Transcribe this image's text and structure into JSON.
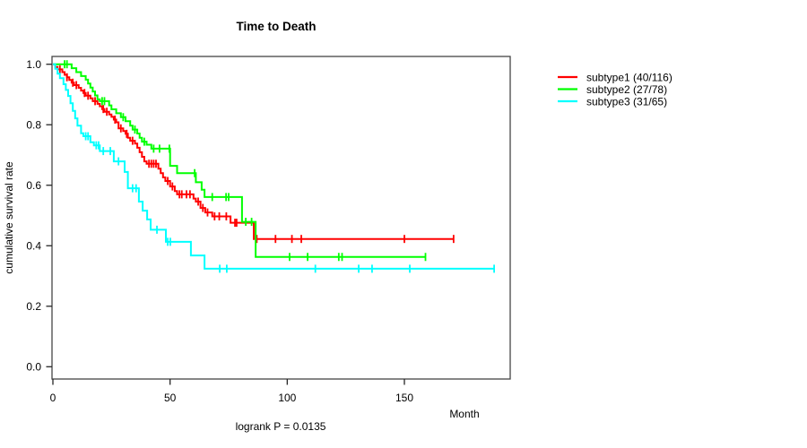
{
  "chart_data": {
    "type": "line",
    "variant": "kaplan-meier-step",
    "title": "Time to Death",
    "xlabel": "Month",
    "ylabel": "cumulative survival rate",
    "annotation": "logrank P = 0.0135",
    "xlim": [
      0,
      195
    ],
    "ylim": [
      0.0,
      1.0
    ],
    "x_ticks": [
      0,
      50,
      100,
      150
    ],
    "y_ticks": [
      "0.0",
      "0.2",
      "0.4",
      "0.6",
      "0.8",
      "1.0"
    ],
    "grid": false,
    "legend_position": "right-outside",
    "series": [
      {
        "name": "subtype1",
        "legend_label": "subtype1 (40/116)",
        "events": 40,
        "n": 116,
        "color": "#ff0000",
        "end_month": 171,
        "steps": [
          [
            0,
            1.0
          ],
          [
            1,
            0.991
          ],
          [
            2,
            0.983
          ],
          [
            4,
            0.974
          ],
          [
            5,
            0.965
          ],
          [
            6,
            0.957
          ],
          [
            7,
            0.948
          ],
          [
            8,
            0.939
          ],
          [
            9,
            0.931
          ],
          [
            11,
            0.922
          ],
          [
            12,
            0.913
          ],
          [
            13,
            0.905
          ],
          [
            14,
            0.896
          ],
          [
            16,
            0.887
          ],
          [
            17,
            0.878
          ],
          [
            19,
            0.869
          ],
          [
            20,
            0.861
          ],
          [
            21,
            0.852
          ],
          [
            22,
            0.843
          ],
          [
            24,
            0.834
          ],
          [
            25,
            0.826
          ],
          [
            26,
            0.817
          ],
          [
            27,
            0.808
          ],
          [
            28,
            0.788
          ],
          [
            30,
            0.779
          ],
          [
            31,
            0.77
          ],
          [
            32,
            0.757
          ],
          [
            33,
            0.747
          ],
          [
            35,
            0.738
          ],
          [
            36,
            0.724
          ],
          [
            37,
            0.709
          ],
          [
            38,
            0.694
          ],
          [
            39,
            0.679
          ],
          [
            40,
            0.671
          ],
          [
            45,
            0.655
          ],
          [
            46,
            0.64
          ],
          [
            47,
            0.626
          ],
          [
            48,
            0.614
          ],
          [
            50,
            0.596
          ],
          [
            52,
            0.581
          ],
          [
            53,
            0.57
          ],
          [
            60,
            0.556
          ],
          [
            61,
            0.546
          ],
          [
            63,
            0.525
          ],
          [
            65,
            0.51
          ],
          [
            68,
            0.497
          ],
          [
            75.8,
            0.476
          ],
          [
            85.7,
            0.4225
          ]
        ],
        "censors": [
          3,
          6,
          8.5,
          10,
          13.5,
          15,
          18,
          21.5,
          23,
          26.5,
          29,
          31.5,
          34,
          41,
          42,
          43,
          44,
          49,
          51,
          54,
          55,
          57,
          58.5,
          62,
          64,
          66,
          69,
          71,
          74,
          77.7,
          78.4,
          87,
          95,
          102,
          106,
          150,
          171
        ]
      },
      {
        "name": "subtype2",
        "legend_label": "subtype2 (27/78)",
        "events": 27,
        "n": 78,
        "color": "#00ff00",
        "end_month": 159,
        "steps": [
          [
            0,
            1.0
          ],
          [
            8,
            0.987
          ],
          [
            10,
            0.974
          ],
          [
            12,
            0.961
          ],
          [
            14,
            0.949
          ],
          [
            15,
            0.936
          ],
          [
            16,
            0.923
          ],
          [
            17,
            0.91
          ],
          [
            18,
            0.897
          ],
          [
            19,
            0.884
          ],
          [
            20,
            0.878
          ],
          [
            24,
            0.864
          ],
          [
            25,
            0.851
          ],
          [
            27,
            0.838
          ],
          [
            29,
            0.825
          ],
          [
            31,
            0.812
          ],
          [
            33,
            0.797
          ],
          [
            34,
            0.784
          ],
          [
            36,
            0.771
          ],
          [
            37,
            0.757
          ],
          [
            38,
            0.744
          ],
          [
            40,
            0.734
          ],
          [
            42,
            0.721
          ],
          [
            50,
            0.664
          ],
          [
            53,
            0.64
          ],
          [
            61,
            0.61
          ],
          [
            63.5,
            0.585
          ],
          [
            64.7,
            0.561
          ],
          [
            80.7,
            0.479
          ],
          [
            86.5,
            0.363
          ]
        ],
        "censors": [
          5,
          6,
          21,
          22,
          30,
          35,
          39,
          43,
          45.5,
          49.7,
          60.5,
          68,
          73.9,
          75,
          82.3,
          84.8,
          101,
          108.7,
          122,
          123.4,
          159
        ]
      },
      {
        "name": "subtype3",
        "legend_label": "subtype3 (31/65)",
        "events": 31,
        "n": 65,
        "color": "#00ffff",
        "end_month": 188.3,
        "steps": [
          [
            0,
            1.0
          ],
          [
            1,
            0.985
          ],
          [
            2,
            0.969
          ],
          [
            3,
            0.954
          ],
          [
            4.5,
            0.934
          ],
          [
            5.5,
            0.915
          ],
          [
            6.5,
            0.895
          ],
          [
            7.5,
            0.871
          ],
          [
            8.5,
            0.846
          ],
          [
            9.5,
            0.821
          ],
          [
            10.5,
            0.797
          ],
          [
            12,
            0.772
          ],
          [
            13,
            0.762
          ],
          [
            16,
            0.742
          ],
          [
            17.5,
            0.732
          ],
          [
            20,
            0.713
          ],
          [
            26,
            0.679
          ],
          [
            30.6,
            0.644
          ],
          [
            32,
            0.59
          ],
          [
            36.7,
            0.546
          ],
          [
            38.3,
            0.516
          ],
          [
            40.2,
            0.487
          ],
          [
            41.7,
            0.453
          ],
          [
            48.2,
            0.413
          ],
          [
            58.9,
            0.368
          ],
          [
            64.7,
            0.324
          ]
        ],
        "censors": [
          14,
          15,
          18.5,
          19.5,
          21.5,
          24.5,
          28,
          34,
          35.5,
          44.4,
          49,
          50.1,
          71.2,
          74.2,
          112,
          130.5,
          136.2,
          152.3,
          188.3
        ]
      }
    ]
  },
  "style": {
    "axis_color": "#262626",
    "box_color": "#454545",
    "background": "#ffffff"
  }
}
